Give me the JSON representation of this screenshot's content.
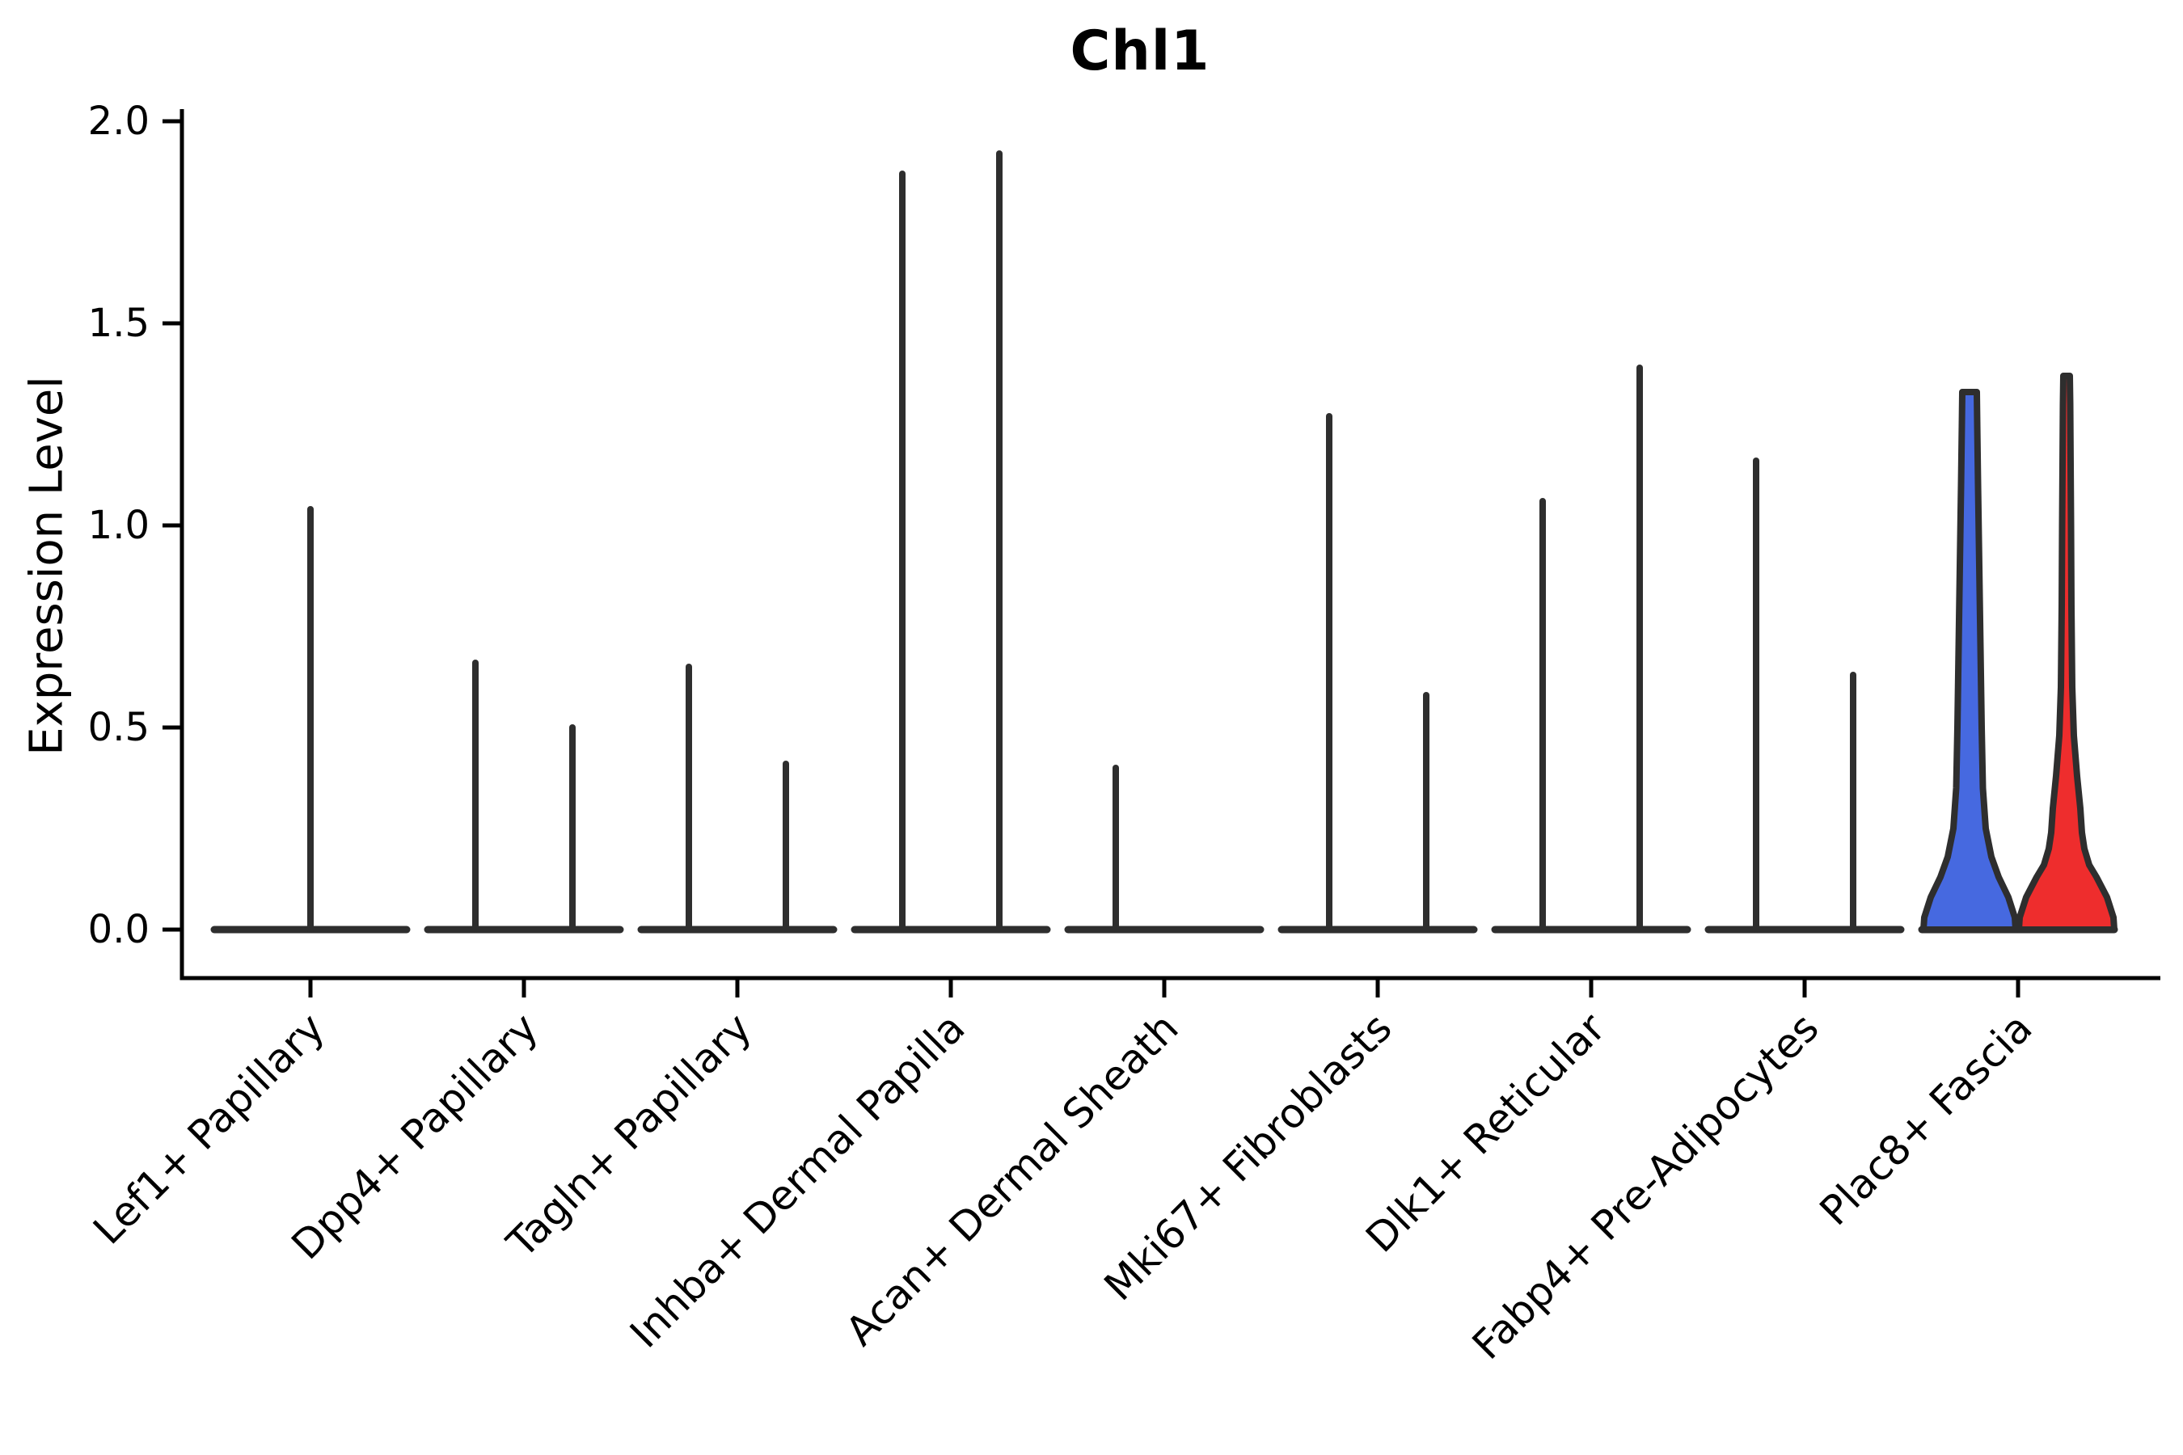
{
  "figure": {
    "title": "Chl1",
    "ylabel": "Expression Level"
  },
  "chart_data": {
    "type": "violin",
    "title": "Chl1",
    "xlabel": "",
    "ylabel": "Expression Level",
    "ylim": [
      0,
      2.0
    ],
    "yticks": [
      "0.0",
      "0.5",
      "1.0",
      "1.5",
      "2.0"
    ],
    "ytick_values": [
      0,
      0.5,
      1.0,
      1.5,
      2.0
    ],
    "grid": false,
    "legend_position": "none",
    "categories": [
      "Lef1+ Papillary",
      "Dpp4+ Papillary",
      "Tagln+ Papillary",
      "Inhba+ Dermal Papilla",
      "Acan+ Dermal Sheath",
      "Mki67+ Fibroblasts",
      "Dlk1+ Reticular",
      "Fabp4+ Pre-Adipocytes",
      "Plac8+ Fascia"
    ],
    "groups_per_category": 2,
    "colors": {
      "blue_violin": "#4669E0",
      "red_violin": "#EE2D2D",
      "line": "#2E2E2E",
      "axis": "#000000"
    },
    "clusters": [
      {
        "category": "Lef1+ Papillary",
        "violins": [
          {
            "dx": 0,
            "max": 1.04,
            "kind": "spike"
          }
        ]
      },
      {
        "category": "Dpp4+ Papillary",
        "violins": [
          {
            "dx": -60,
            "max": 0.66,
            "kind": "spike"
          },
          {
            "dx": 60,
            "max": 0.5,
            "kind": "spike"
          }
        ]
      },
      {
        "category": "Tagln+ Papillary",
        "violins": [
          {
            "dx": -60,
            "max": 0.65,
            "kind": "spike"
          },
          {
            "dx": 60,
            "max": 0.41,
            "kind": "spike"
          }
        ]
      },
      {
        "category": "Inhba+ Dermal Papilla",
        "violins": [
          {
            "dx": -60,
            "max": 1.87,
            "kind": "spike"
          },
          {
            "dx": 60,
            "max": 1.92,
            "kind": "spike"
          }
        ]
      },
      {
        "category": "Acan+ Dermal Sheath",
        "violins": [
          {
            "dx": -60,
            "max": 0.4,
            "kind": "spike"
          },
          {
            "dx": 60,
            "max": 0,
            "kind": "flat"
          }
        ]
      },
      {
        "category": "Mki67+ Fibroblasts",
        "violins": [
          {
            "dx": -60,
            "max": 1.27,
            "kind": "spike"
          },
          {
            "dx": 60,
            "max": 0.58,
            "kind": "spike"
          }
        ]
      },
      {
        "category": "Dlk1+ Reticular",
        "violins": [
          {
            "dx": -60,
            "max": 1.06,
            "kind": "spike"
          },
          {
            "dx": 60,
            "max": 1.39,
            "kind": "spike"
          }
        ]
      },
      {
        "category": "Fabp4+ Pre-Adipocytes",
        "violins": [
          {
            "dx": -60,
            "max": 1.16,
            "kind": "spike"
          },
          {
            "dx": 60,
            "max": 0.63,
            "kind": "spike"
          }
        ]
      },
      {
        "category": "Plac8+ Fascia",
        "violins": [
          {
            "dx": -60,
            "max": 1.33,
            "kind": "violin",
            "fill": "#4669E0",
            "profile": [
              [
                0,
                57
              ],
              [
                0.03,
                56
              ],
              [
                0.08,
                48
              ],
              [
                0.13,
                36
              ],
              [
                0.18,
                27
              ],
              [
                0.25,
                20
              ],
              [
                0.35,
                16.5
              ],
              [
                0.5,
                15
              ],
              [
                0.7,
                13.5
              ],
              [
                0.9,
                12
              ],
              [
                1.1,
                10.5
              ],
              [
                1.25,
                9.5
              ],
              [
                1.33,
                9
              ]
            ]
          },
          {
            "dx": 60,
            "max": 1.37,
            "kind": "violin",
            "fill": "#EE2D2D",
            "profile": [
              [
                0,
                59
              ],
              [
                0.03,
                58
              ],
              [
                0.08,
                50
              ],
              [
                0.13,
                37
              ],
              [
                0.16,
                28
              ],
              [
                0.2,
                22
              ],
              [
                0.24,
                19
              ],
              [
                0.3,
                17
              ],
              [
                0.38,
                13
              ],
              [
                0.48,
                9
              ],
              [
                0.6,
                7
              ],
              [
                0.8,
                6
              ],
              [
                1.0,
                5.5
              ],
              [
                1.15,
                5
              ],
              [
                1.3,
                4.5
              ],
              [
                1.37,
                4
              ]
            ]
          }
        ]
      }
    ]
  }
}
